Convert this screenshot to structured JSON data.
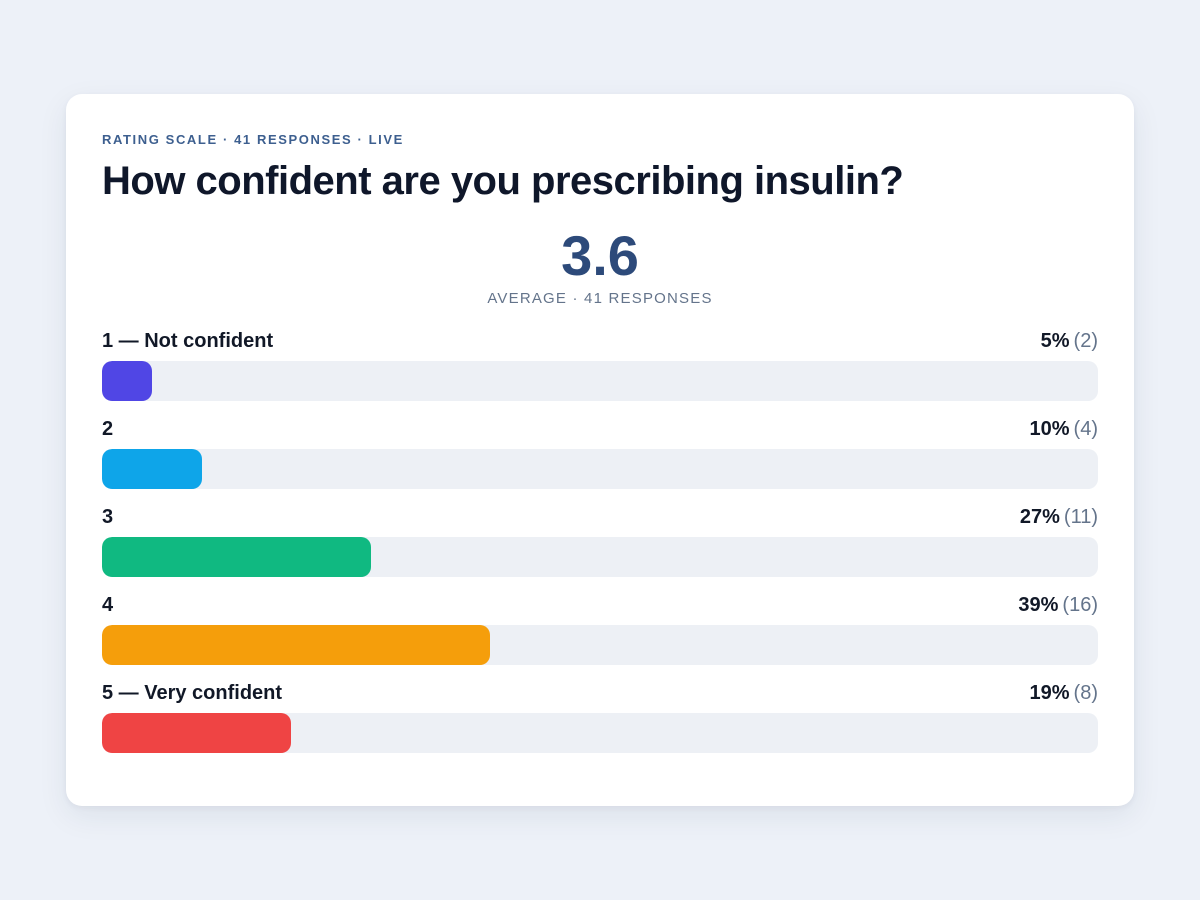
{
  "poll": {
    "eyebrow": "RATING SCALE · 41 RESPONSES · LIVE",
    "question": "How confident are you prescribing insulin?",
    "average_value": "3.6",
    "average_label": "AVERAGE · 41 RESPONSES"
  },
  "options": [
    {
      "label": "1 — Not confident",
      "percent_text": "5%",
      "count_text": "(2)",
      "fraction": 0.05,
      "color": "#5046e5"
    },
    {
      "label": "2",
      "percent_text": "10%",
      "count_text": "(4)",
      "fraction": 0.1,
      "color": "#0ea5e9"
    },
    {
      "label": "3",
      "percent_text": "27%",
      "count_text": "(11)",
      "fraction": 0.27,
      "color": "#10b981"
    },
    {
      "label": "4",
      "percent_text": "39%",
      "count_text": "(16)",
      "fraction": 0.39,
      "color": "#f59e0b"
    },
    {
      "label": "5 — Very confident",
      "percent_text": "19%",
      "count_text": "(8)",
      "fraction": 0.19,
      "color": "#ef4444"
    }
  ]
}
